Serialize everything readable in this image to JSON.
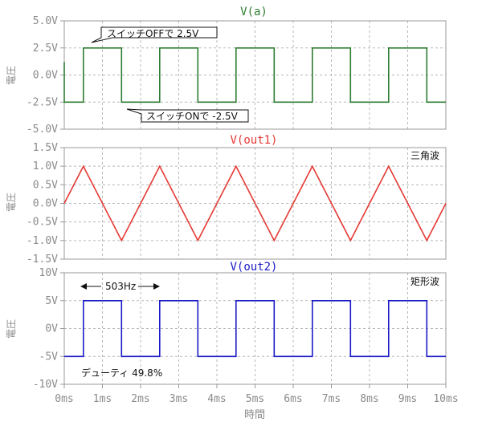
{
  "chart_data": [
    {
      "type": "line",
      "title": "V(a)",
      "ylabel": "電圧",
      "xlim": [
        0,
        10
      ],
      "ylim": [
        -5.0,
        5.0
      ],
      "yticks": [
        "5.0V",
        "2.5V",
        "0.0V",
        "-2.5V",
        "-5.0V"
      ],
      "ytick_values": [
        5.0,
        2.5,
        0.0,
        -2.5,
        -5.0
      ],
      "color": "#2e7d32",
      "series": [
        {
          "x": [
            0,
            0,
            0.5,
            0.5,
            1.5,
            1.5,
            2.5,
            2.5,
            3.5,
            3.5,
            4.5,
            4.5,
            5.5,
            5.5,
            6.5,
            6.5,
            7.5,
            7.5,
            8.5,
            8.5,
            9.5,
            9.5,
            10
          ],
          "values": [
            1.2,
            -2.5,
            -2.5,
            2.5,
            2.5,
            -2.5,
            -2.5,
            2.5,
            2.5,
            -2.5,
            -2.5,
            2.5,
            2.5,
            -2.5,
            -2.5,
            2.5,
            2.5,
            -2.5,
            -2.5,
            2.5,
            2.5,
            -2.5,
            -2.5
          ]
        }
      ],
      "annotations": [
        {
          "text": "スイッチOFFで 2.5V",
          "x": 1.3,
          "y": 3.6
        },
        {
          "text": "スイッチONで -2.5V",
          "x": 2.3,
          "y": -3.6
        }
      ]
    },
    {
      "type": "line",
      "title": "V(out1)",
      "ylabel": "電圧",
      "xlim": [
        0,
        10
      ],
      "ylim": [
        -1.5,
        1.5
      ],
      "yticks": [
        "1.5V",
        "1.0V",
        "0.5V",
        "0.0V",
        "-0.5V",
        "-1.0V",
        "-1.5V"
      ],
      "ytick_values": [
        1.5,
        1.0,
        0.5,
        0.0,
        -0.5,
        -1.0,
        -1.5
      ],
      "color": "#e53935",
      "label": "三角波",
      "series": [
        {
          "x": [
            0,
            0.5,
            1.5,
            2.5,
            3.5,
            4.5,
            5.5,
            6.5,
            7.5,
            8.5,
            9.5,
            10
          ],
          "values": [
            0.0,
            1.0,
            -1.0,
            1.0,
            -1.0,
            1.0,
            -1.0,
            1.0,
            -1.0,
            1.0,
            -1.0,
            0.0
          ]
        }
      ]
    },
    {
      "type": "line",
      "title": "V(out2)",
      "ylabel": "電圧",
      "xlabel": "時間",
      "xlim": [
        0,
        10
      ],
      "ylim": [
        -10,
        10
      ],
      "yticks": [
        "10V",
        "5V",
        "0V",
        "-5V",
        "-10V"
      ],
      "ytick_values": [
        10,
        5,
        0,
        -5,
        -10
      ],
      "xticks": [
        "0ms",
        "1ms",
        "2ms",
        "3ms",
        "4ms",
        "5ms",
        "6ms",
        "7ms",
        "8ms",
        "9ms",
        "10ms"
      ],
      "color": "#1a1ac8",
      "label": "矩形波",
      "series": [
        {
          "x": [
            0,
            0.5,
            0.5,
            1.5,
            1.5,
            2.5,
            2.5,
            3.5,
            3.5,
            4.5,
            4.5,
            5.5,
            5.5,
            6.5,
            6.5,
            7.5,
            7.5,
            8.5,
            8.5,
            9.5,
            9.5,
            10
          ],
          "values": [
            -5,
            -5,
            5,
            5,
            -5,
            -5,
            5,
            5,
            -5,
            -5,
            5,
            5,
            -5,
            -5,
            5,
            5,
            -5,
            -5,
            5,
            5,
            -5,
            -5
          ]
        }
      ],
      "annotations": [
        {
          "text": "503Hz",
          "x": 1.05,
          "y": 7.7
        },
        {
          "text": "デューティ 49.8%",
          "x": 0.55,
          "y": -8.0
        }
      ]
    }
  ]
}
